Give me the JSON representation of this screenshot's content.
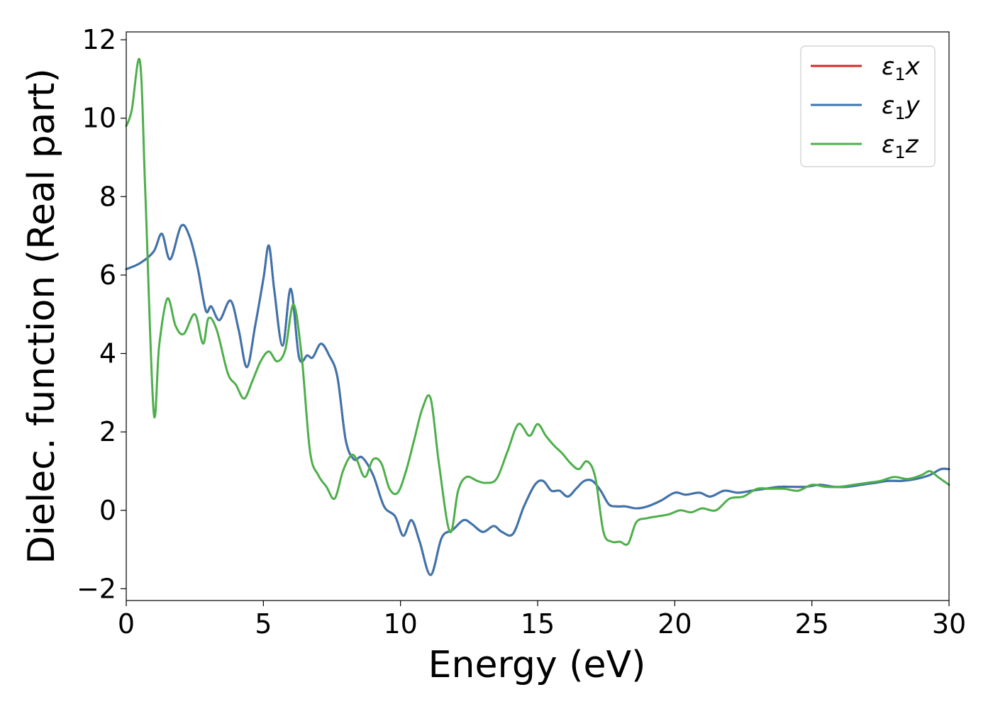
{
  "chart_data": {
    "type": "line",
    "xlabel": "Energy (eV)",
    "ylabel": "Dielec. function (Real part)",
    "xlim": [
      0,
      30
    ],
    "ylim": [
      -2.3,
      12.2
    ],
    "xticks": [
      0,
      5,
      10,
      15,
      20,
      25,
      30
    ],
    "yticks": [
      -2,
      0,
      2,
      4,
      6,
      8,
      10,
      12
    ],
    "grid": false,
    "legend_position": "top-right",
    "series": [
      {
        "name": "ε1x",
        "color": "#d62728",
        "note": "identical to ε1y",
        "x": [
          0,
          0.5,
          1.0,
          1.3,
          1.6,
          2.0,
          2.3,
          2.6,
          2.9,
          3.1,
          3.4,
          3.8,
          4.1,
          4.4,
          4.7,
          5.0,
          5.2,
          5.4,
          5.7,
          6.0,
          6.3,
          6.6,
          6.8,
          7.1,
          7.4,
          7.7,
          8.0,
          8.3,
          8.6,
          9.0,
          9.4,
          9.8,
          10.1,
          10.4,
          10.7,
          11.1,
          11.5,
          11.9,
          12.3,
          12.6,
          13.0,
          13.4,
          13.7,
          14.1,
          14.5,
          14.9,
          15.2,
          15.5,
          15.8,
          16.1,
          16.4,
          16.7,
          17.0,
          17.3,
          17.6,
          17.9,
          18.2,
          18.6,
          19.0,
          19.5,
          20.0,
          20.4,
          20.9,
          21.3,
          21.8,
          22.3,
          22.8,
          23.3,
          23.8,
          24.3,
          24.8,
          25.3,
          25.8,
          26.3,
          26.8,
          27.3,
          27.8,
          28.3,
          28.8,
          29.3,
          29.7,
          30.0
        ],
        "values": [
          6.15,
          6.3,
          6.6,
          7.05,
          6.4,
          7.25,
          7.0,
          6.2,
          5.1,
          5.2,
          4.85,
          5.35,
          4.6,
          3.65,
          4.7,
          5.9,
          6.75,
          5.6,
          4.2,
          5.65,
          3.9,
          3.95,
          3.9,
          4.25,
          3.95,
          3.4,
          1.8,
          1.3,
          1.35,
          0.9,
          0.1,
          -0.15,
          -0.65,
          -0.25,
          -0.8,
          -1.65,
          -0.7,
          -0.5,
          -0.25,
          -0.35,
          -0.55,
          -0.4,
          -0.55,
          -0.6,
          0.1,
          0.65,
          0.75,
          0.5,
          0.5,
          0.35,
          0.55,
          0.75,
          0.75,
          0.5,
          0.15,
          0.1,
          0.1,
          0.05,
          0.1,
          0.25,
          0.45,
          0.4,
          0.45,
          0.35,
          0.5,
          0.45,
          0.5,
          0.55,
          0.6,
          0.6,
          0.6,
          0.65,
          0.6,
          0.6,
          0.65,
          0.7,
          0.75,
          0.75,
          0.8,
          0.9,
          1.05,
          1.05
        ]
      },
      {
        "name": "ε1y",
        "color": "#3b75af",
        "x": [
          0,
          0.5,
          1.0,
          1.3,
          1.6,
          2.0,
          2.3,
          2.6,
          2.9,
          3.1,
          3.4,
          3.8,
          4.1,
          4.4,
          4.7,
          5.0,
          5.2,
          5.4,
          5.7,
          6.0,
          6.3,
          6.6,
          6.8,
          7.1,
          7.4,
          7.7,
          8.0,
          8.3,
          8.6,
          9.0,
          9.4,
          9.8,
          10.1,
          10.4,
          10.7,
          11.1,
          11.5,
          11.9,
          12.3,
          12.6,
          13.0,
          13.4,
          13.7,
          14.1,
          14.5,
          14.9,
          15.2,
          15.5,
          15.8,
          16.1,
          16.4,
          16.7,
          17.0,
          17.3,
          17.6,
          17.9,
          18.2,
          18.6,
          19.0,
          19.5,
          20.0,
          20.4,
          20.9,
          21.3,
          21.8,
          22.3,
          22.8,
          23.3,
          23.8,
          24.3,
          24.8,
          25.3,
          25.8,
          26.3,
          26.8,
          27.3,
          27.8,
          28.3,
          28.8,
          29.3,
          29.7,
          30.0
        ],
        "values": [
          6.15,
          6.3,
          6.6,
          7.05,
          6.4,
          7.25,
          7.0,
          6.2,
          5.1,
          5.2,
          4.85,
          5.35,
          4.6,
          3.65,
          4.7,
          5.9,
          6.75,
          5.6,
          4.2,
          5.65,
          3.9,
          3.95,
          3.9,
          4.25,
          3.95,
          3.4,
          1.8,
          1.3,
          1.35,
          0.9,
          0.1,
          -0.15,
          -0.65,
          -0.25,
          -0.8,
          -1.65,
          -0.7,
          -0.5,
          -0.25,
          -0.35,
          -0.55,
          -0.4,
          -0.55,
          -0.6,
          0.1,
          0.65,
          0.75,
          0.5,
          0.5,
          0.35,
          0.55,
          0.75,
          0.75,
          0.5,
          0.15,
          0.1,
          0.1,
          0.05,
          0.1,
          0.25,
          0.45,
          0.4,
          0.45,
          0.35,
          0.5,
          0.45,
          0.5,
          0.55,
          0.6,
          0.6,
          0.6,
          0.65,
          0.6,
          0.6,
          0.65,
          0.7,
          0.75,
          0.75,
          0.8,
          0.9,
          1.05,
          1.05
        ]
      },
      {
        "name": "ε1z",
        "color": "#4daf4a",
        "x": [
          0,
          0.2,
          0.5,
          0.7,
          1.0,
          1.2,
          1.5,
          1.8,
          2.1,
          2.5,
          2.8,
          3.0,
          3.3,
          3.7,
          4.0,
          4.3,
          4.6,
          4.9,
          5.2,
          5.5,
          5.8,
          6.1,
          6.4,
          6.7,
          7.0,
          7.3,
          7.6,
          7.9,
          8.2,
          8.4,
          8.7,
          9.0,
          9.3,
          9.6,
          9.9,
          10.2,
          10.5,
          10.8,
          11.1,
          11.4,
          11.8,
          12.1,
          12.4,
          12.8,
          13.1,
          13.5,
          13.9,
          14.3,
          14.7,
          15.0,
          15.3,
          15.6,
          15.9,
          16.2,
          16.5,
          16.8,
          17.1,
          17.4,
          17.7,
          18.0,
          18.3,
          18.6,
          19.0,
          19.4,
          19.8,
          20.2,
          20.6,
          21.0,
          21.5,
          22.0,
          22.5,
          23.0,
          23.5,
          24.0,
          24.5,
          25.0,
          25.5,
          26.0,
          26.5,
          27.0,
          27.5,
          28.0,
          28.5,
          29.0,
          29.3,
          29.6,
          30.0
        ],
        "values": [
          9.8,
          10.2,
          11.45,
          8.0,
          2.5,
          4.2,
          5.4,
          4.7,
          4.5,
          5.0,
          4.25,
          4.9,
          4.6,
          3.5,
          3.2,
          2.85,
          3.3,
          3.8,
          4.05,
          3.8,
          4.1,
          5.25,
          3.9,
          1.5,
          0.9,
          0.6,
          0.3,
          1.0,
          1.4,
          1.3,
          0.85,
          1.3,
          1.2,
          0.55,
          0.45,
          1.0,
          1.8,
          2.6,
          2.85,
          1.2,
          -0.55,
          0.5,
          0.85,
          0.75,
          0.7,
          0.8,
          1.5,
          2.2,
          1.9,
          2.2,
          1.9,
          1.65,
          1.45,
          1.2,
          1.05,
          1.25,
          0.85,
          -0.55,
          -0.8,
          -0.8,
          -0.85,
          -0.3,
          -0.2,
          -0.15,
          -0.1,
          0.0,
          -0.05,
          0.05,
          0.0,
          0.3,
          0.35,
          0.55,
          0.55,
          0.55,
          0.5,
          0.65,
          0.6,
          0.6,
          0.65,
          0.7,
          0.75,
          0.85,
          0.8,
          0.9,
          1.0,
          0.85,
          0.65
        ]
      }
    ]
  }
}
